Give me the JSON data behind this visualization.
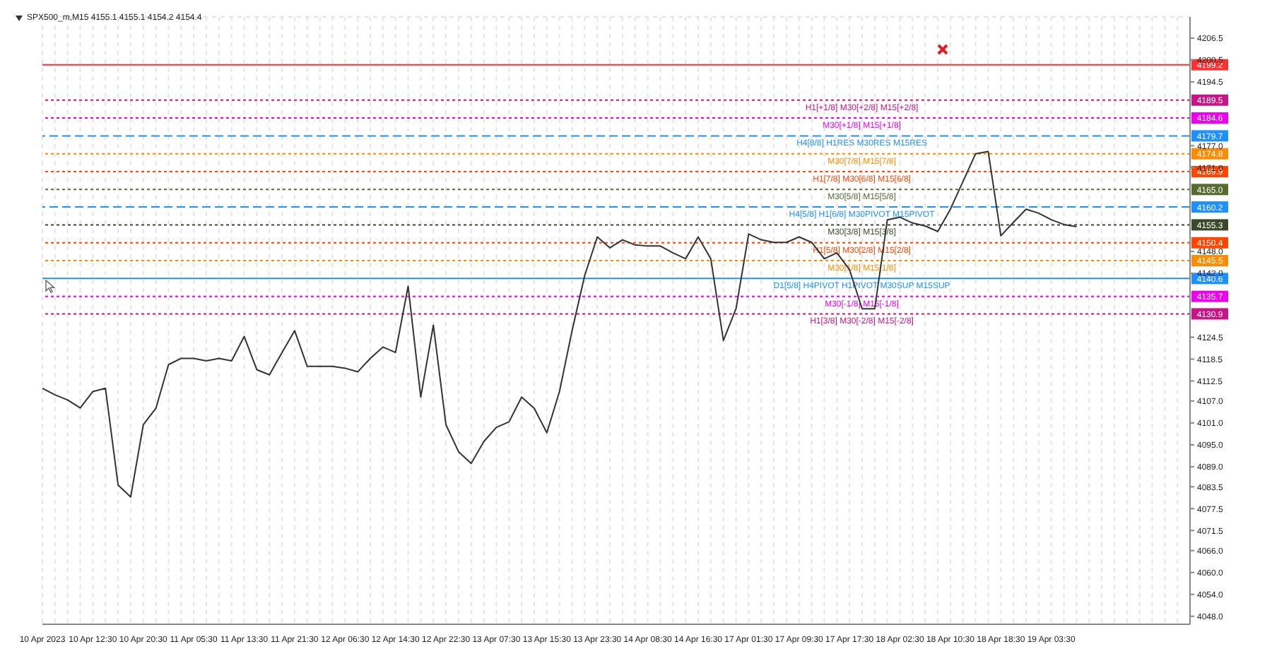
{
  "chart_data": {
    "type": "line",
    "title": "SPX500_m,M15  4155.1 4155.1 4154.2 4154.4",
    "categories": [
      "10 Apr 2023",
      null,
      null,
      null,
      "10 Apr 12:30",
      null,
      null,
      null,
      "10 Apr 20:30",
      null,
      null,
      null,
      "11 Apr 05:30",
      null,
      null,
      null,
      "11 Apr 13:30",
      null,
      null,
      null,
      "11 Apr 21:30",
      null,
      null,
      null,
      "12 Apr 06:30",
      null,
      null,
      null,
      "12 Apr 14:30",
      null,
      null,
      null,
      "12 Apr 22:30",
      null,
      null,
      null,
      "13 Apr 07:30",
      null,
      null,
      null,
      "13 Apr 15:30",
      null,
      null,
      null,
      "13 Apr 23:30",
      null,
      null,
      null,
      "14 Apr 08:30",
      null,
      null,
      null,
      "14 Apr 16:30",
      null,
      null,
      null,
      "17 Apr 01:30",
      null,
      null,
      null,
      "17 Apr 09:30",
      null,
      null,
      null,
      "17 Apr 17:30",
      null,
      null,
      null,
      "18 Apr 02:30",
      null,
      null,
      null,
      "18 Apr 10:30",
      null,
      null,
      null,
      "18 Apr 18:30",
      null,
      null,
      null,
      "19 Apr 03:30",
      null,
      null,
      null,
      null,
      null,
      null,
      null,
      null,
      null,
      null,
      null
    ],
    "series": [
      {
        "color": "#333333",
        "values": [
          4110.5,
          4108.7,
          4107.3,
          4105.1,
          4109.6,
          4110.5,
          4084,
          4080.7,
          4100.5,
          4105,
          4117,
          4118.7,
          4118.7,
          4118,
          4118.7,
          4118,
          4124.7,
          4115.6,
          4114.2,
          4120.3,
          4126.3,
          4116.5,
          4116.5,
          4116.5,
          4116,
          4115,
          4118.7,
          4121.8,
          4120.3,
          4138.5,
          4108.1,
          4127.8,
          4100.5,
          4093.1,
          4089.9,
          4095.9,
          4099.8,
          4101.3,
          4108.1,
          4105,
          4098.3,
          4109.6,
          4126.3,
          4141.4,
          4152,
          4149,
          4151.2,
          4149.8,
          4149.5,
          4149.5,
          4147.6,
          4146,
          4152,
          4146,
          4123.6,
          4132.3,
          4152.8,
          4151.2,
          4150.5,
          4150.5,
          4152,
          4150.5,
          4146,
          4147.6,
          4143,
          4132.3,
          4132.3,
          4156.7,
          4157.4,
          4155.8,
          4155,
          4153.5,
          4159.6,
          4167.2,
          4174.8,
          4175.4,
          4152.3,
          4156,
          4159.6,
          4158.5,
          4156.7,
          4155.4,
          4154.8,
          null,
          null,
          null,
          null,
          null,
          null,
          null,
          null,
          null
        ]
      }
    ],
    "ylim": [
      4045.8,
      4212.3
    ],
    "yticks": [
      {
        "value": 4206.5,
        "label": "4206.5"
      },
      {
        "value": 4200.5,
        "label": "4200.5"
      },
      {
        "value": 4194.5,
        "label": "4194.5"
      },
      {
        "value": 4177.0,
        "label": "4177.0"
      },
      {
        "value": 4171.0,
        "label": "4171.0"
      },
      {
        "value": 4148.0,
        "label": "4148.0"
      },
      {
        "value": 4142.0,
        "label": "4142.0"
      },
      {
        "value": 4124.5,
        "label": "4124.5"
      },
      {
        "value": 4118.5,
        "label": "4118.5"
      },
      {
        "value": 4112.5,
        "label": "4112.5"
      },
      {
        "value": 4107.0,
        "label": "4107.0"
      },
      {
        "value": 4101.0,
        "label": "4101.0"
      },
      {
        "value": 4095.0,
        "label": "4095.0"
      },
      {
        "value": 4089.0,
        "label": "4089.0"
      },
      {
        "value": 4083.5,
        "label": "4083.5"
      },
      {
        "value": 4077.5,
        "label": "4077.5"
      },
      {
        "value": 4071.5,
        "label": "4071.5"
      },
      {
        "value": 4066.0,
        "label": "4066.0"
      },
      {
        "value": 4060.0,
        "label": "4060.0"
      },
      {
        "value": 4054.0,
        "label": "4054.0"
      },
      {
        "value": 4048.0,
        "label": "4048.0"
      }
    ],
    "ref_lines": [
      {
        "axis": "y",
        "value": 4199.2,
        "color": "#ff3030",
        "line_style": "solid"
      },
      {
        "axis": "y",
        "value": 4189.5,
        "label": "H1[+1/8] M30[+2/8] M15[+2/8]",
        "color": "#c71585",
        "line_style": "dotted"
      },
      {
        "axis": "y",
        "value": 4184.6,
        "label": "M30[+1/8] M15[+1/8]",
        "color": "#ee00ee",
        "line_style": "dotted"
      },
      {
        "axis": "y",
        "value": 4179.7,
        "label": "H4[8/8] H1RES M30RES M15RES",
        "color": "#1e90ff",
        "line_style": "dashed"
      },
      {
        "axis": "y",
        "value": 4174.8,
        "label": "M30[7/8] M15[7/8]",
        "color": "#ff8c00",
        "line_style": "dotted"
      },
      {
        "axis": "y",
        "value": 4169.9,
        "label": "H1[7/8] M30[6/8] M15[6/8]",
        "color": "#ff4500",
        "line_style": "dotted"
      },
      {
        "axis": "y",
        "value": 4165.0,
        "label": "M30[5/8] M15[5/8]",
        "color": "#556b2f",
        "line_style": "dotted"
      },
      {
        "axis": "y",
        "value": 4160.2,
        "label": "H4[5/8] H1[6/8] M30PIVOT M15PIVOT",
        "color": "#1e90ff",
        "line_style": "dashed"
      },
      {
        "axis": "y",
        "value": 4155.3,
        "label": "M30[3/8] M15[3/8]",
        "color": "#3b4a2a",
        "line_style": "dotted"
      },
      {
        "axis": "y",
        "value": 4150.4,
        "label": "H1[5/8] M30[2/8] M15[2/8]",
        "color": "#ff4500",
        "line_style": "dotted"
      },
      {
        "axis": "y",
        "value": 4145.5,
        "label": "M30[1/8] M15[1/8]",
        "color": "#ff8c00",
        "line_style": "dotted"
      },
      {
        "axis": "y",
        "value": 4140.6,
        "label": "D1[5/8] H4PIVOT H1PIVOT M30SUP M15SUP",
        "color": "#1e90ff",
        "line_style": "solid"
      },
      {
        "axis": "y",
        "value": 4135.7,
        "label": "M30[-1/8] M15[-1/8]",
        "color": "#ee00ee",
        "line_style": "dotted"
      },
      {
        "axis": "y",
        "value": 4130.9,
        "label": "H1[3/8] M30[-2/8] M15[-2/8]",
        "color": "#c71585",
        "line_style": "dotted"
      }
    ],
    "annotations": [
      {
        "text": "4199.2",
        "y": 4199.2
      },
      {
        "text": "4189.5",
        "y": 4189.5
      },
      {
        "text": "4184.6",
        "y": 4184.6
      },
      {
        "text": "4179.7",
        "y": 4179.7
      },
      {
        "text": "4174.8",
        "y": 4174.8
      },
      {
        "text": "4169.9",
        "y": 4169.9
      },
      {
        "text": "4165.0",
        "y": 4165.0
      },
      {
        "text": "4160.2",
        "y": 4160.2
      },
      {
        "text": "4155.3",
        "y": 4155.3
      },
      {
        "text": "4150.4",
        "y": 4150.4
      },
      {
        "text": "4145.5",
        "y": 4145.5
      },
      {
        "text": "4140.6",
        "y": 4140.6
      },
      {
        "text": "4135.7",
        "y": 4135.7
      },
      {
        "text": "4130.9",
        "y": 4130.9
      }
    ],
    "grid": true,
    "marker": "none",
    "line_style": "solid",
    "legend": false
  }
}
